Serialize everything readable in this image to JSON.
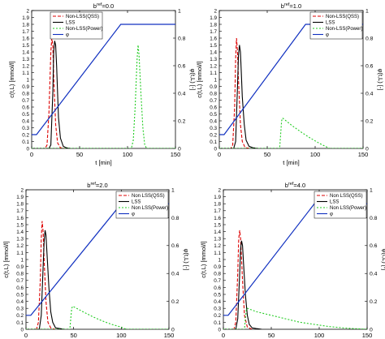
{
  "figure": {
    "title": ""
  },
  "chart_data": [
    {
      "type": "line",
      "title_base": "b",
      "title_sup": "ref",
      "title_tail": "=0.0",
      "xlabel": "t [min]",
      "ylabel": "c(t,L) [mmol/l]",
      "y2label": "φ(t,L) [-]",
      "xlim": [
        0,
        150
      ],
      "ylim": [
        0,
        2
      ],
      "y2lim": [
        0,
        1
      ],
      "xticks": [
        0,
        50,
        100,
        150
      ],
      "yticks": [
        0,
        0.1,
        0.2,
        0.3,
        0.4,
        0.5,
        0.6,
        0.7,
        0.8,
        0.9,
        1,
        1.1,
        1.2,
        1.3,
        1.4,
        1.5,
        1.6,
        1.7,
        1.8,
        1.9,
        2
      ],
      "y2ticks": [
        0,
        0.2,
        0.4,
        0.6,
        0.8,
        1
      ],
      "legend": [
        "Non-LSS(QSS)",
        "LSS",
        "Non-LSS(Power)",
        "φ"
      ],
      "legend_position": "top-left",
      "series": [
        {
          "name": "Non-LSS(QSS)",
          "color": "#dd0000",
          "dash": "4,2",
          "axis": "left",
          "x": [
            0,
            14,
            16,
            18,
            20,
            21,
            22,
            23,
            25,
            27,
            30,
            35
          ],
          "y": [
            0,
            0,
            0.05,
            0.5,
            1.4,
            1.6,
            1.5,
            1.05,
            0.35,
            0.08,
            0.01,
            0
          ]
        },
        {
          "name": "LSS",
          "color": "#000000",
          "dash": "",
          "axis": "left",
          "x": [
            0,
            18,
            20,
            22,
            23,
            24,
            25,
            26,
            27,
            28,
            30,
            33,
            36,
            40
          ],
          "y": [
            0,
            0,
            0.05,
            0.8,
            1.4,
            1.56,
            1.5,
            1.2,
            0.8,
            0.45,
            0.15,
            0.03,
            0.01,
            0
          ]
        },
        {
          "name": "Non-LSS(Power)",
          "color": "#22cc22",
          "dash": "2,2",
          "axis": "left",
          "x": [
            0,
            104,
            106,
            108,
            110,
            111,
            112,
            114,
            116,
            118,
            120,
            150
          ],
          "y": [
            0,
            0,
            0.12,
            0.6,
            1.3,
            1.5,
            1.35,
            0.8,
            0.3,
            0.05,
            0,
            0
          ]
        },
        {
          "name": "φ",
          "color": "#1030c0",
          "dash": "",
          "axis": "right",
          "x": [
            0,
            5,
            93,
            150
          ],
          "y": [
            0.1,
            0.1,
            0.9,
            0.9
          ]
        }
      ]
    },
    {
      "type": "line",
      "title_base": "b",
      "title_sup": "ref",
      "title_tail": "=1.0",
      "xlabel": "t [min]",
      "ylabel": "c(t,L) [mmol/l]",
      "y2label": "φ(t,L) [-]",
      "xlim": [
        0,
        150
      ],
      "ylim": [
        0,
        2
      ],
      "y2lim": [
        0,
        1
      ],
      "xticks": [
        0,
        50,
        100,
        150
      ],
      "yticks": [
        0,
        0.1,
        0.2,
        0.3,
        0.4,
        0.5,
        0.6,
        0.7,
        0.8,
        0.9,
        1,
        1.1,
        1.2,
        1.3,
        1.4,
        1.5,
        1.6,
        1.7,
        1.8,
        1.9,
        2
      ],
      "y2ticks": [
        0,
        0.2,
        0.4,
        0.6,
        0.8,
        1
      ],
      "legend": [
        "Non-LSS(QSS)",
        "LSS",
        "Non-LSS(Power)",
        "φ"
      ],
      "legend_position": "top-right",
      "series": [
        {
          "name": "Non-LSS(QSS)",
          "color": "#dd0000",
          "dash": "4,2",
          "axis": "left",
          "x": [
            0,
            12,
            14,
            16,
            17,
            18,
            19,
            20,
            22,
            24,
            27,
            32
          ],
          "y": [
            0,
            0,
            0.05,
            0.6,
            1.3,
            1.6,
            1.4,
            1.0,
            0.35,
            0.1,
            0.01,
            0
          ]
        },
        {
          "name": "LSS",
          "color": "#000000",
          "dash": "",
          "axis": "left",
          "x": [
            0,
            15,
            17,
            19,
            20,
            21,
            22,
            23,
            24,
            26,
            28,
            31,
            35,
            40
          ],
          "y": [
            0,
            0,
            0.1,
            0.9,
            1.35,
            1.5,
            1.4,
            1.1,
            0.75,
            0.35,
            0.12,
            0.03,
            0.01,
            0
          ]
        },
        {
          "name": "Non-LSS(Power)",
          "color": "#22cc22",
          "dash": "2,2",
          "axis": "left",
          "x": [
            0,
            63,
            64,
            65,
            66,
            75,
            85,
            95,
            105,
            115,
            150
          ],
          "y": [
            0,
            0,
            0.2,
            0.4,
            0.44,
            0.34,
            0.24,
            0.15,
            0.07,
            0,
            0
          ]
        },
        {
          "name": "φ",
          "color": "#1030c0",
          "dash": "",
          "axis": "right",
          "x": [
            0,
            5,
            90,
            150
          ],
          "y": [
            0.1,
            0.1,
            0.9,
            0.9
          ]
        }
      ]
    },
    {
      "type": "line",
      "title_base": "b",
      "title_sup": "ref",
      "title_tail": "=2.0",
      "xlabel": "t [min]",
      "ylabel": "c(t,L) [mmol/l]",
      "y2label": "φ(t,L) [-]",
      "xlim": [
        0,
        150
      ],
      "ylim": [
        0,
        2
      ],
      "y2lim": [
        0,
        1
      ],
      "xticks": [
        0,
        50,
        100,
        150
      ],
      "yticks": [
        0,
        0.1,
        0.2,
        0.3,
        0.4,
        0.5,
        0.6,
        0.7,
        0.8,
        0.9,
        1,
        1.1,
        1.2,
        1.3,
        1.4,
        1.5,
        1.6,
        1.7,
        1.8,
        1.9,
        2
      ],
      "y2ticks": [
        0,
        0.2,
        0.4,
        0.6,
        0.8,
        1
      ],
      "legend": [
        "Non LSS(QSS)",
        "LSS",
        "Non LSS(Power)",
        "φ"
      ],
      "legend_position": "top-right",
      "series": [
        {
          "name": "Non LSS(QSS)",
          "color": "#dd0000",
          "dash": "4,2",
          "axis": "left",
          "x": [
            0,
            11,
            13,
            15,
            16,
            17,
            18,
            19,
            21,
            23,
            26,
            30
          ],
          "y": [
            0,
            0,
            0.1,
            0.7,
            1.3,
            1.55,
            1.4,
            1.0,
            0.4,
            0.1,
            0.02,
            0
          ]
        },
        {
          "name": "LSS",
          "color": "#000000",
          "dash": "",
          "axis": "left",
          "x": [
            0,
            14,
            16,
            18,
            19,
            20,
            21,
            22,
            24,
            26,
            28,
            31,
            35,
            40
          ],
          "y": [
            0,
            0,
            0.2,
            0.9,
            1.25,
            1.42,
            1.35,
            1.1,
            0.6,
            0.25,
            0.1,
            0.02,
            0.01,
            0
          ]
        },
        {
          "name": "Non LSS(Power)",
          "color": "#22cc22",
          "dash": "2,2",
          "axis": "left",
          "x": [
            0,
            46,
            47,
            48,
            49,
            60,
            70,
            80,
            90,
            100,
            105,
            150
          ],
          "y": [
            0,
            0,
            0.15,
            0.3,
            0.33,
            0.25,
            0.18,
            0.12,
            0.07,
            0.03,
            0,
            0
          ]
        },
        {
          "name": "φ",
          "color": "#1030c0",
          "dash": "",
          "axis": "right",
          "x": [
            0,
            5,
            100,
            150
          ],
          "y": [
            0.1,
            0.1,
            0.9,
            0.9
          ]
        }
      ]
    },
    {
      "type": "line",
      "title_base": "b",
      "title_sup": "ref",
      "title_tail": "=4.0",
      "xlabel": "t [min]",
      "ylabel": "c(t,L) [mmol/l]",
      "y2label": "φ(t,L) [-]",
      "xlim": [
        0,
        150
      ],
      "ylim": [
        0,
        2
      ],
      "y2lim": [
        0,
        1
      ],
      "xticks": [
        0,
        50,
        100,
        150
      ],
      "yticks": [
        0,
        0.1,
        0.2,
        0.3,
        0.4,
        0.5,
        0.6,
        0.7,
        0.8,
        0.9,
        1,
        1.1,
        1.2,
        1.3,
        1.4,
        1.5,
        1.6,
        1.7,
        1.8,
        1.9,
        2
      ],
      "y2ticks": [
        0,
        0.2,
        0.4,
        0.6,
        0.8,
        1
      ],
      "legend": [
        "Non LSS(QSS)",
        "LSS",
        "Non LSS(Power)",
        "φ"
      ],
      "legend_position": "top-right",
      "series": [
        {
          "name": "Non LSS(QSS)",
          "color": "#dd0000",
          "dash": "4,2",
          "axis": "left",
          "x": [
            0,
            11,
            13,
            15,
            16,
            17,
            18,
            20,
            22,
            25,
            30
          ],
          "y": [
            0,
            0,
            0.1,
            0.8,
            1.3,
            1.42,
            1.3,
            0.7,
            0.2,
            0.03,
            0
          ]
        },
        {
          "name": "LSS",
          "color": "#000000",
          "dash": "",
          "axis": "left",
          "x": [
            0,
            13,
            15,
            17,
            18,
            19,
            20,
            21,
            23,
            25,
            27,
            30,
            34,
            40
          ],
          "y": [
            0,
            0,
            0.15,
            0.8,
            1.15,
            1.27,
            1.2,
            0.95,
            0.5,
            0.2,
            0.07,
            0.02,
            0.01,
            0
          ]
        },
        {
          "name": "Non LSS(Power)",
          "color": "#22cc22",
          "dash": "2,2",
          "axis": "left",
          "x": [
            0,
            22,
            23,
            24,
            25,
            35,
            50,
            65,
            80,
            95,
            110,
            125,
            135,
            150
          ],
          "y": [
            0,
            0,
            0.15,
            0.28,
            0.3,
            0.25,
            0.2,
            0.15,
            0.1,
            0.07,
            0.04,
            0.02,
            0.01,
            0
          ]
        },
        {
          "name": "φ",
          "color": "#1030c0",
          "dash": "",
          "axis": "right",
          "x": [
            0,
            5,
            95,
            150
          ],
          "y": [
            0.1,
            0.1,
            0.9,
            0.9
          ]
        }
      ]
    }
  ]
}
